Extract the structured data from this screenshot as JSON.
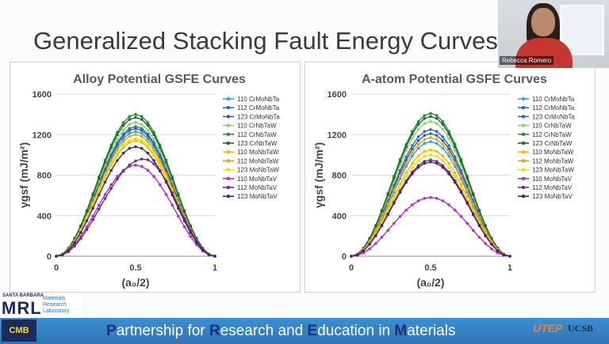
{
  "slide": {
    "title": "Generalized Stacking Fault Energy Curves",
    "webcam_name": "Rebecca Romero",
    "footer_text": "Partnership for Research and Education in Materials",
    "footer_parts": [
      {
        "cap": "P",
        "rest": "artnership for "
      },
      {
        "cap": "R",
        "rest": "esearch and "
      },
      {
        "cap": "E",
        "rest": "ducation in "
      },
      {
        "cap": "M",
        "rest": "aterials"
      }
    ],
    "mrl_top": "SANTA BARBARA",
    "mrl_big": "MRL",
    "mrl_sub": [
      "Materials",
      "Research",
      "Laboratory"
    ],
    "cmb_logo": "CMB",
    "utep_logo": "UTEP",
    "ucsb_logo": "UCSB"
  },
  "colors": {
    "110 CrMoNbTa": "#29a8dc",
    "112 CrMoNbTa": "#2e6fb6",
    "123 CrMoNbTa": "#3b5f9e",
    "110 CrNbTaW": "#8fd16b",
    "112 CrNbTaW": "#2e8b3c",
    "123 CrNbTaW": "#1f6b2a",
    "110 MoNbTaW": "#f5b800",
    "112 MoNbTaW": "#f39c12",
    "123 MoNbTaW": "#e8e000",
    "110 MoNbTaV": "#b030c8",
    "112 MoNbTaV": "#6a2e8c",
    "123 MoNbTaV": "#4a2466"
  },
  "chart_data": [
    {
      "type": "line",
      "title": "Alloy Potential GSFE Curves",
      "xlabel": "(a₀/2)",
      "ylabel": "γgsf (mJ/m²)",
      "xlim": [
        0,
        1
      ],
      "ylim": [
        0,
        1600
      ],
      "xticks": [
        "0",
        "0.5",
        "1"
      ],
      "yticks": [
        "0",
        "400",
        "800",
        "1200",
        "1600"
      ],
      "legend_position": "right",
      "series": [
        {
          "name": "110 CrMoNbTa",
          "peak": 1230,
          "peak_x": 0.5
        },
        {
          "name": "112 CrMoNbTa",
          "peak": 1280,
          "peak_x": 0.5
        },
        {
          "name": "123 CrMoNbTa",
          "peak": 1260,
          "peak_x": 0.5
        },
        {
          "name": "110 CrNbTaW",
          "peak": 1320,
          "peak_x": 0.5
        },
        {
          "name": "112 CrNbTaW",
          "peak": 1400,
          "peak_x": 0.5
        },
        {
          "name": "123 CrNbTaW",
          "peak": 1370,
          "peak_x": 0.5
        },
        {
          "name": "110 MoNbTaW",
          "peak": 1140,
          "peak_x": 0.5
        },
        {
          "name": "112 MoNbTaW",
          "peak": 1200,
          "peak_x": 0.5
        },
        {
          "name": "123 MoNbTaW",
          "peak": 1160,
          "peak_x": 0.5
        },
        {
          "name": "110 MoNbTaV",
          "peak": 900,
          "peak_x": 0.5
        },
        {
          "name": "112 MoNbTaV",
          "peak": 960,
          "peak_x": 0.55
        },
        {
          "name": "123 MoNbTaV",
          "peak": 1080,
          "peak_x": 0.5
        }
      ]
    },
    {
      "type": "line",
      "title": "A-atom Potential GSFE Curves",
      "xlabel": "(a₀/2)",
      "ylabel": "γgsf (mJ/m²)",
      "xlim": [
        0,
        1
      ],
      "ylim": [
        0,
        1600
      ],
      "xticks": [
        "0",
        "0.5",
        "1"
      ],
      "yticks": [
        "0",
        "400",
        "800",
        "1200",
        "1600"
      ],
      "legend_position": "right",
      "series": [
        {
          "name": "110 CrMoNbTa",
          "peak": 1130,
          "peak_x": 0.5
        },
        {
          "name": "112 CrMoNbTa",
          "peak": 1250,
          "peak_x": 0.5
        },
        {
          "name": "123 CrMoNbTa",
          "peak": 1210,
          "peak_x": 0.5
        },
        {
          "name": "110 CrNbTaW",
          "peak": 1330,
          "peak_x": 0.5
        },
        {
          "name": "112 CrNbTaW",
          "peak": 1410,
          "peak_x": 0.5
        },
        {
          "name": "123 CrNbTaW",
          "peak": 1380,
          "peak_x": 0.5
        },
        {
          "name": "110 MoNbTaW",
          "peak": 1050,
          "peak_x": 0.5
        },
        {
          "name": "112 MoNbTaW",
          "peak": 1170,
          "peak_x": 0.5
        },
        {
          "name": "123 MoNbTaW",
          "peak": 1000,
          "peak_x": 0.5
        },
        {
          "name": "110 MoNbTaV",
          "peak": 580,
          "peak_x": 0.5
        },
        {
          "name": "112 MoNbTaV",
          "peak": 950,
          "peak_x": 0.5
        },
        {
          "name": "123 MoNbTaV",
          "peak": 930,
          "peak_x": 0.5
        }
      ]
    }
  ]
}
